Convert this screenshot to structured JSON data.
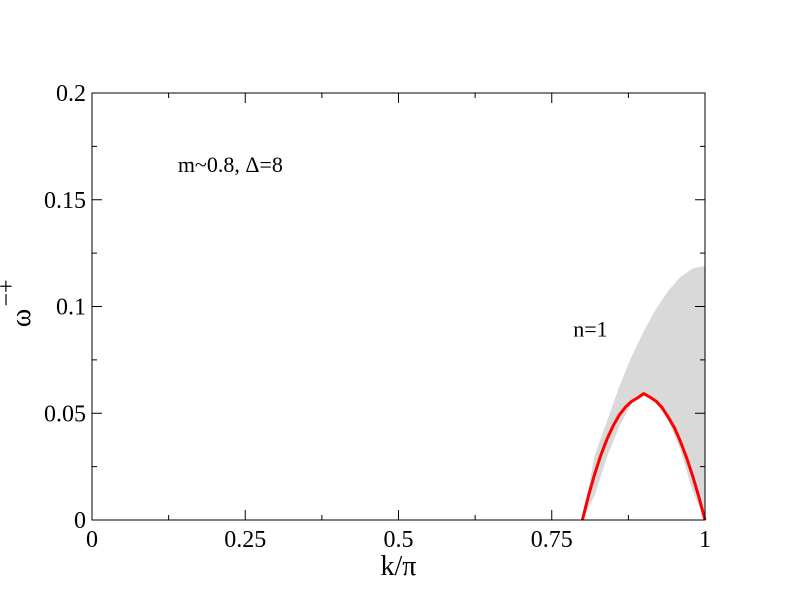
{
  "chart_data": {
    "type": "line",
    "title": "",
    "xlabel": "k/π",
    "ylabel": "ω",
    "ylabel_superscript": "−+",
    "xlim": [
      0,
      1
    ],
    "ylim": [
      0,
      0.2
    ],
    "xticks": [
      {
        "value": 0,
        "label": "0"
      },
      {
        "value": 0.25,
        "label": "0.25"
      },
      {
        "value": 0.5,
        "label": "0.5"
      },
      {
        "value": 0.75,
        "label": "0.75"
      },
      {
        "value": 1,
        "label": "1"
      }
    ],
    "yticks": [
      {
        "value": 0,
        "label": "0"
      },
      {
        "value": 0.05,
        "label": "0.05"
      },
      {
        "value": 0.1,
        "label": "0.1"
      },
      {
        "value": 0.15,
        "label": "0.15"
      },
      {
        "value": 0.2,
        "label": "0.2"
      }
    ],
    "grid": false,
    "annotations": [
      {
        "text": "m~0.8, Δ=8",
        "x": 0.14,
        "y": 0.163
      },
      {
        "text": "n=1",
        "x": 0.785,
        "y": 0.086
      }
    ],
    "series": [
      {
        "kind": "band",
        "color": "#d9d9d9",
        "x": [
          0.8,
          0.82,
          0.84,
          0.86,
          0.88,
          0.9,
          0.92,
          0.94,
          0.96,
          0.98,
          1.0
        ],
        "lower": [
          0,
          0.0114,
          0.0294,
          0.0437,
          0.0545,
          0.0592,
          0.0557,
          0.0467,
          0.0327,
          0.0134,
          0
        ],
        "upper": [
          0,
          0.0302,
          0.0462,
          0.0624,
          0.0764,
          0.0884,
          0.0988,
          0.1074,
          0.1138,
          0.1178,
          0.119
        ]
      },
      {
        "kind": "line",
        "color": "#ff0000",
        "x": [
          0.8,
          0.81,
          0.82,
          0.83,
          0.84,
          0.85,
          0.86,
          0.87,
          0.88,
          0.89,
          0.9,
          0.91,
          0.92,
          0.93,
          0.94,
          0.95,
          0.96,
          0.97,
          0.98,
          0.99,
          1.0
        ],
        "y": [
          0,
          0.0114,
          0.0215,
          0.0303,
          0.0378,
          0.044,
          0.0491,
          0.0528,
          0.0555,
          0.0572,
          0.0592,
          0.0576,
          0.0557,
          0.0526,
          0.0482,
          0.0433,
          0.0367,
          0.0291,
          0.0205,
          0.0108,
          0
        ]
      }
    ]
  }
}
